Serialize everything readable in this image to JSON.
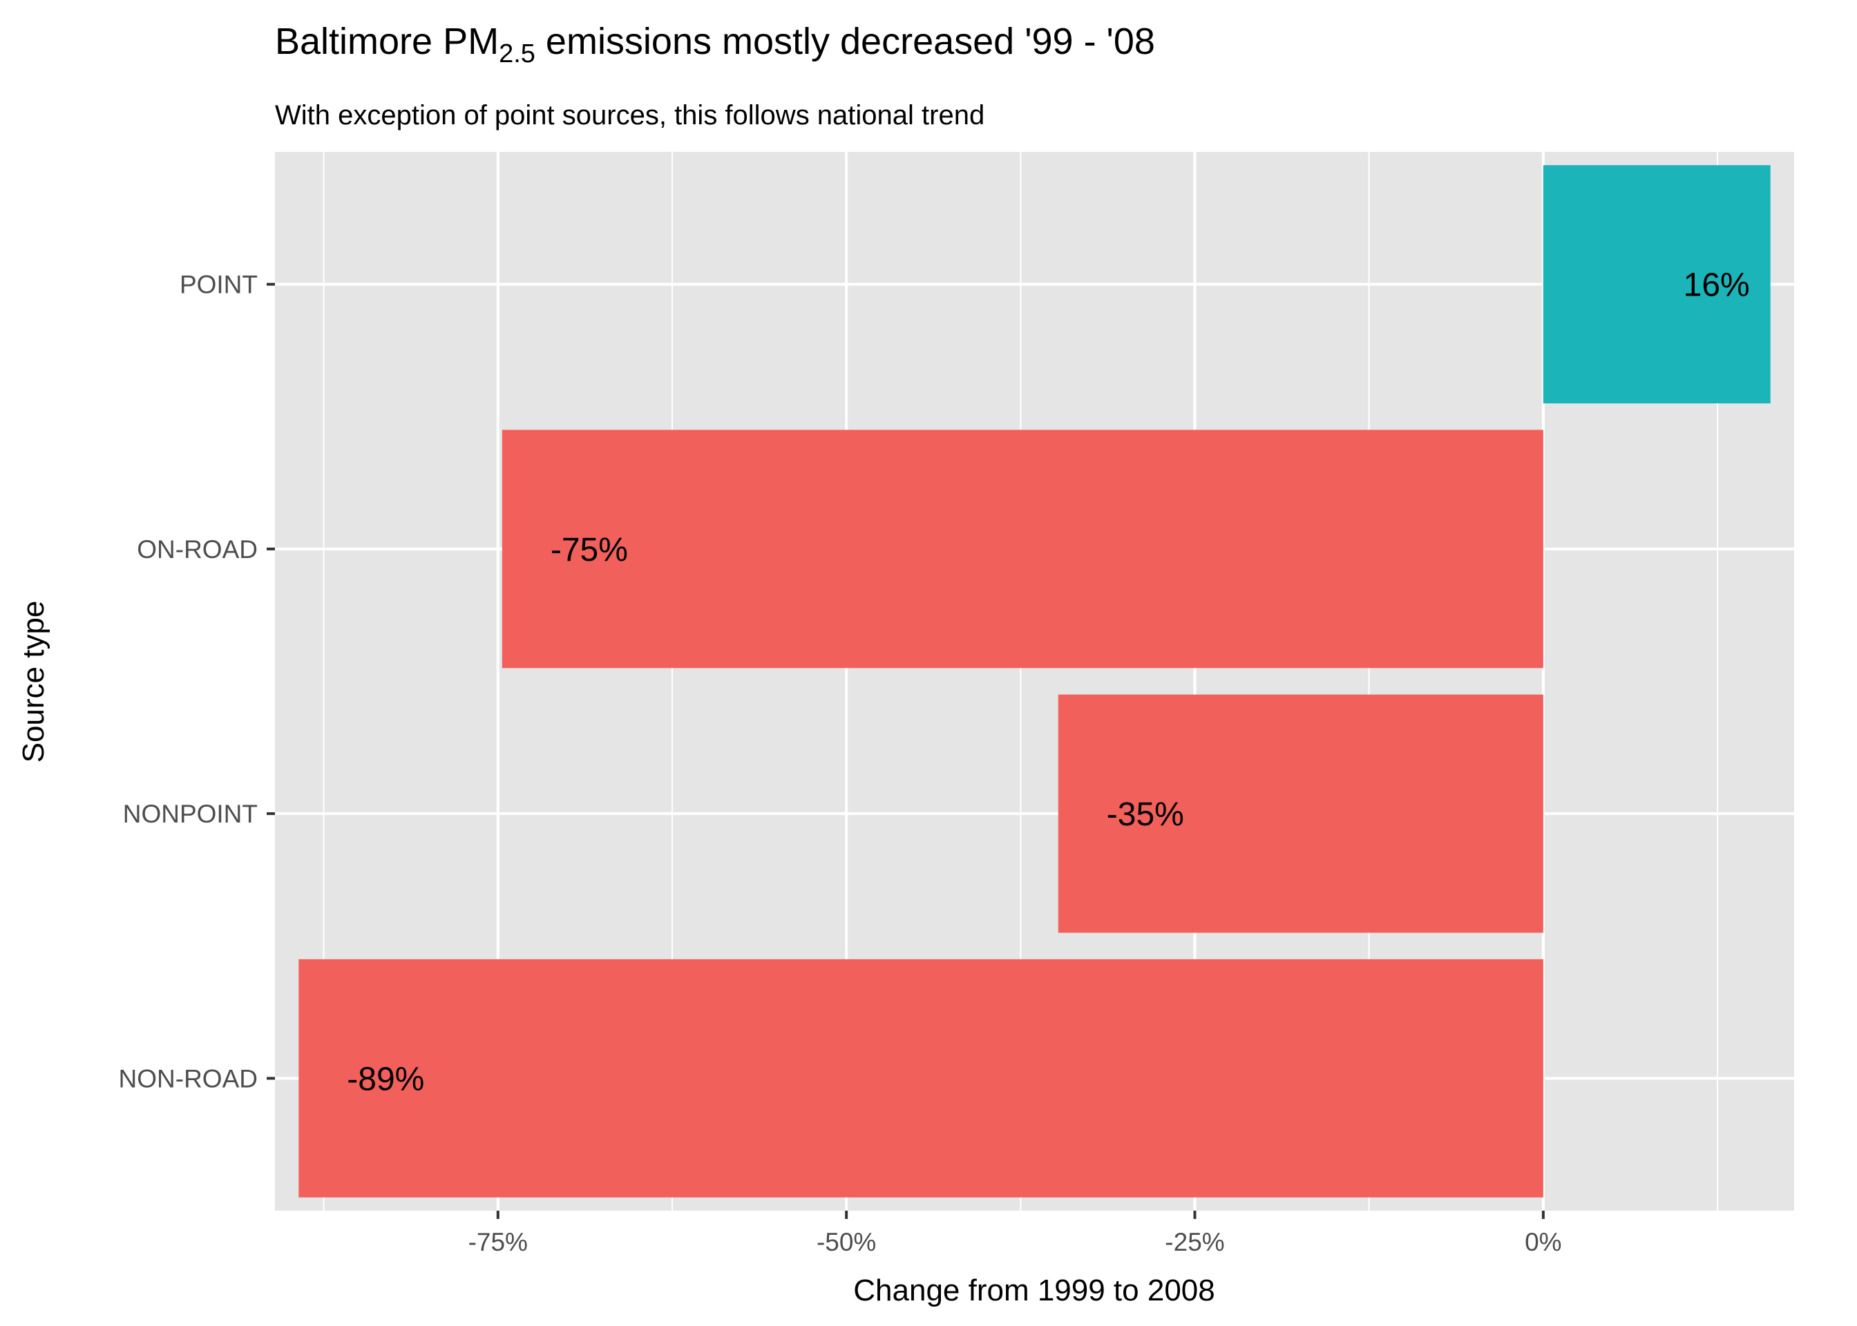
{
  "chart_data": {
    "type": "bar",
    "orientation": "horizontal",
    "title": "Baltimore PM",
    "title_subscript": "2.5",
    "title_suffix": " emissions mostly decreased '99 - '08",
    "subtitle": "With exception of point sources, this follows national trend",
    "xlabel": "Change from 1999 to 2008",
    "ylabel": "Source type",
    "categories": [
      "POINT",
      "ON-ROAD",
      "NONPOINT",
      "NON-ROAD"
    ],
    "values": [
      16.3,
      -74.7,
      -34.8,
      -89.3
    ],
    "labels": [
      "16%",
      "-75%",
      "-35%",
      "-89%"
    ],
    "xlim": [
      -91,
      18
    ],
    "xticks": [
      -75,
      -50,
      -25,
      0
    ],
    "xtick_labels": [
      "-75%",
      "-50%",
      "-25%",
      "0%"
    ],
    "grid": true,
    "legend": "none",
    "colors": {
      "increase": "#1bb4b8",
      "decrease": "#f2605c",
      "panel": "#e5e5e5",
      "gridline": "#ffffff"
    }
  }
}
